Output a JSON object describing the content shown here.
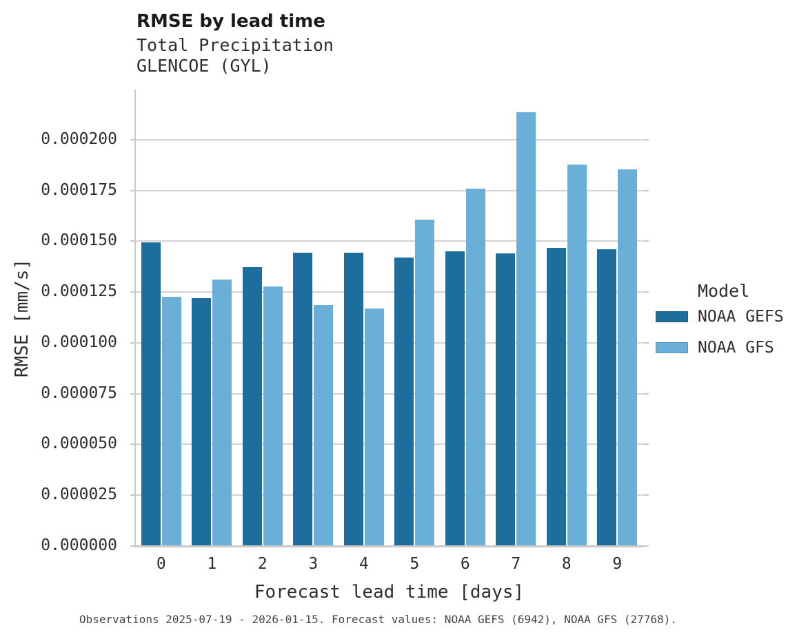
{
  "header": {
    "title": "RMSE by lead time",
    "subtitle_line1": "Total Precipitation",
    "subtitle_line2": "GLENCOE (GYL)"
  },
  "legend": {
    "title": "Model",
    "items": [
      {
        "label": "NOAA GEFS",
        "color": "#1d6d9d"
      },
      {
        "label": "NOAA GFS",
        "color": "#69afd8"
      }
    ]
  },
  "caption": "Observations 2025-07-19 - 2026-01-15. Forecast values: NOAA GEFS (6942), NOAA GFS (27768).",
  "chart_data": {
    "type": "bar",
    "title": "RMSE by lead time",
    "subtitle": "Total Precipitation / GLENCOE (GYL)",
    "xlabel": "Forecast lead time [days]",
    "ylabel": "RMSE [mm/s]",
    "categories": [
      "0",
      "1",
      "2",
      "3",
      "4",
      "5",
      "6",
      "7",
      "8",
      "9"
    ],
    "series": [
      {
        "name": "NOAA GEFS",
        "color": "#1d6d9d",
        "values": [
          0.0001495,
          0.000122,
          0.0001373,
          0.0001444,
          0.0001444,
          0.000142,
          0.0001451,
          0.0001441,
          0.0001468,
          0.0001461
        ]
      },
      {
        "name": "NOAA GFS",
        "color": "#69afd8",
        "values": [
          0.0001227,
          0.0001312,
          0.0001278,
          0.0001186,
          0.0001169,
          0.0001607,
          0.0001759,
          0.0002136,
          0.0001878,
          0.0001854
        ]
      }
    ],
    "yticks": [
      0.0,
      2.5e-05,
      5e-05,
      7.5e-05,
      0.0001,
      0.000125,
      0.00015,
      0.000175,
      0.0002
    ],
    "ytick_labels": [
      "0.000000",
      "0.000025",
      "0.000050",
      "0.000075",
      "0.000100",
      "0.000125",
      "0.000150",
      "0.000175",
      "0.000200"
    ],
    "ylim": [
      0,
      0.0002247
    ],
    "grid": true,
    "legend_position": "right",
    "grid_color": "#d3d3d3",
    "axis_color": "#c9c9c9"
  }
}
